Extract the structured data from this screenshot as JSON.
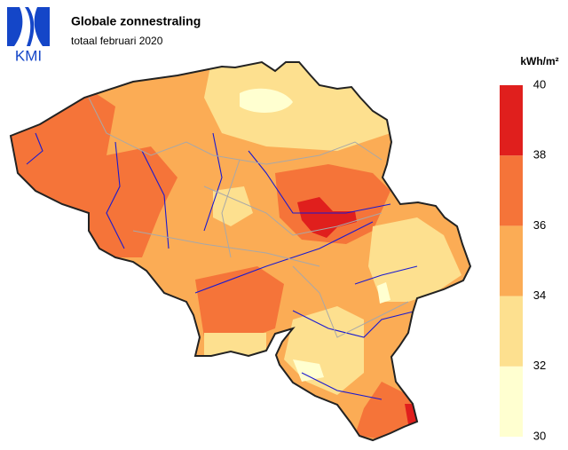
{
  "header": {
    "logo": "KMI",
    "title": "Globale zonnestraling",
    "subtitle": "totaal februari 2020"
  },
  "legend": {
    "unit": "kWh/m²",
    "ticks": [
      30,
      32,
      34,
      36,
      38,
      40
    ],
    "colors": [
      "#ffffd0",
      "#fde08f",
      "#fbac55",
      "#f57439",
      "#e01f1d"
    ]
  }
}
